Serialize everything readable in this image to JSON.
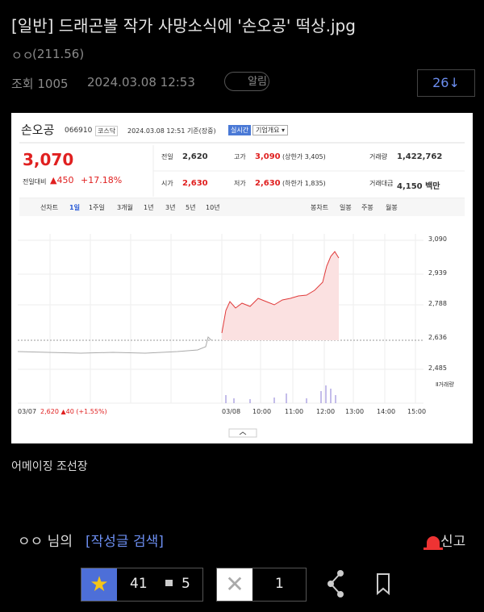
{
  "post": {
    "title": "[일반] 드래곤볼 작가 사망소식에 '손오공' 떡상.jpg",
    "author": "ㅇㅇ",
    "author_ip": "(211.56)",
    "views": "조회 1005",
    "date": "2024.03.08 12:53",
    "alarm": "알림",
    "comments": "26↓"
  },
  "stock": {
    "name": "손오공",
    "code": "066910",
    "market": "코스닥",
    "time": "2024.03.08 12:51 기준(장중)",
    "badge": "실시간",
    "info": "기업개요 ▾",
    "price": "3,070",
    "change_label": "전일대비",
    "change": "▲450",
    "pct": "+17.18%",
    "stats": [
      [
        "전일",
        "2,620"
      ],
      [
        "고가",
        "3,090",
        "(상한가 3,405)"
      ],
      [
        "거래량",
        "1,422,762"
      ],
      [
        "시가",
        "2,630"
      ],
      [
        "저가",
        "2,630",
        "(하한가 1,835)"
      ],
      [
        "거래대금",
        "4,150 백만"
      ]
    ],
    "tabs": [
      "선차트",
      "1일",
      "1주일",
      "3개월",
      "1년",
      "3년",
      "5년",
      "10년"
    ],
    "candle_tabs": [
      "봉차트",
      "일봉",
      "주봉",
      "월봉"
    ],
    "y_labels": [
      "3,090",
      "2,939",
      "2,788",
      "2,636",
      "2,485"
    ],
    "volume_label": "Ⅱ거래량",
    "prev_date": "03/07",
    "prev_info": "2,620 ▲40 (+1.55%)",
    "x_labels": [
      "03/08",
      "10:00",
      "11:00",
      "12:00",
      "13:00",
      "14:00",
      "15:00"
    ]
  },
  "caption": "어메이징 조선장",
  "footer": {
    "author": "ㅇㅇ 님의",
    "search": "[작성글 검색]",
    "report": "신고",
    "likes": "41",
    "mini_likes": "5",
    "dislikes": "1"
  }
}
